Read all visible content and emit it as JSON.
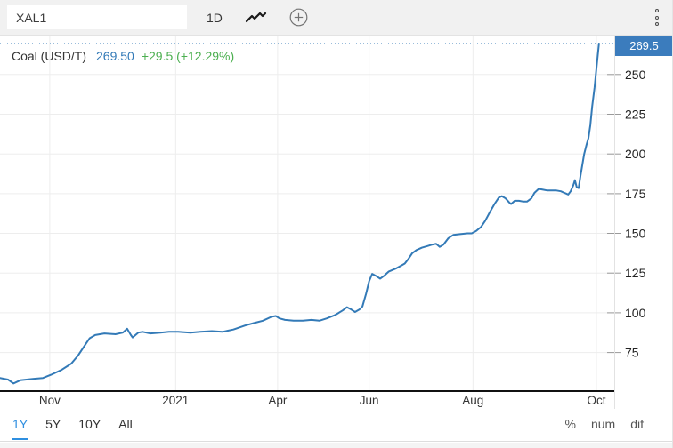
{
  "toolbar": {
    "symbol": "XAL1",
    "interval_label": "1D",
    "icons": [
      "line-style-icon",
      "add-circle-icon",
      "kebab-menu-icon"
    ]
  },
  "legend": {
    "title": "Coal (USD/T)",
    "price": "269.50",
    "change": "+29.5 (+12.29%)"
  },
  "price_axis": {
    "last_price_badge": "269.5"
  },
  "range_tabs": [
    {
      "label": "1Y",
      "active": true
    },
    {
      "label": "5Y",
      "active": false
    },
    {
      "label": "10Y",
      "active": false
    },
    {
      "label": "All",
      "active": false
    }
  ],
  "display_modes": [
    {
      "label": "%"
    },
    {
      "label": "num"
    },
    {
      "label": "dif"
    }
  ],
  "colors": {
    "accent_blue": "#337ab7",
    "badge_blue": "#3b7cbd",
    "active_tab_blue": "#2f8fe0",
    "positive_green": "#4caf50",
    "grid": "#ededed",
    "baseline_black": "#111111"
  },
  "chart_data": {
    "type": "line",
    "title": "Coal (USD/T)",
    "xlabel": "",
    "ylabel": "USD/T",
    "grid": true,
    "line_color": "#337ab7",
    "last_price": 269.5,
    "ylim": [
      50.7,
      269.5
    ],
    "y_ticks": [
      75,
      100,
      125,
      150,
      175,
      200,
      225,
      250
    ],
    "x_ticks": [
      {
        "pos": 0.081,
        "label": "Nov"
      },
      {
        "pos": 0.286,
        "label": "2021"
      },
      {
        "pos": 0.452,
        "label": "Apr"
      },
      {
        "pos": 0.601,
        "label": "Jun"
      },
      {
        "pos": 0.77,
        "label": "Aug"
      },
      {
        "pos": 0.971,
        "label": "Oct"
      }
    ],
    "series": [
      {
        "name": "Coal (USD/T)",
        "points": [
          [
            0.0,
            59
          ],
          [
            0.013,
            58
          ],
          [
            0.022,
            55.5
          ],
          [
            0.033,
            57.5
          ],
          [
            0.055,
            58.5
          ],
          [
            0.07,
            59
          ],
          [
            0.083,
            61
          ],
          [
            0.1,
            64
          ],
          [
            0.116,
            68
          ],
          [
            0.127,
            73
          ],
          [
            0.139,
            80
          ],
          [
            0.146,
            84
          ],
          [
            0.155,
            86
          ],
          [
            0.17,
            87
          ],
          [
            0.188,
            86.5
          ],
          [
            0.2,
            87.5
          ],
          [
            0.207,
            90
          ],
          [
            0.213,
            86
          ],
          [
            0.216,
            84.5
          ],
          [
            0.225,
            87.5
          ],
          [
            0.232,
            88
          ],
          [
            0.245,
            87
          ],
          [
            0.261,
            87.5
          ],
          [
            0.275,
            88
          ],
          [
            0.29,
            88
          ],
          [
            0.31,
            87.5
          ],
          [
            0.326,
            88
          ],
          [
            0.345,
            88.5
          ],
          [
            0.362,
            88
          ],
          [
            0.38,
            89.5
          ],
          [
            0.399,
            92
          ],
          [
            0.413,
            93.5
          ],
          [
            0.428,
            95
          ],
          [
            0.442,
            97.5
          ],
          [
            0.449,
            98
          ],
          [
            0.455,
            96.5
          ],
          [
            0.464,
            95.5
          ],
          [
            0.478,
            95
          ],
          [
            0.493,
            95
          ],
          [
            0.507,
            95.5
          ],
          [
            0.52,
            95
          ],
          [
            0.532,
            96.5
          ],
          [
            0.545,
            98.5
          ],
          [
            0.558,
            101.5
          ],
          [
            0.565,
            103.5
          ],
          [
            0.572,
            102
          ],
          [
            0.578,
            100.5
          ],
          [
            0.585,
            102
          ],
          [
            0.59,
            104
          ],
          [
            0.596,
            112
          ],
          [
            0.601,
            120
          ],
          [
            0.606,
            124.5
          ],
          [
            0.613,
            123
          ],
          [
            0.619,
            121.5
          ],
          [
            0.626,
            123.5
          ],
          [
            0.633,
            126
          ],
          [
            0.645,
            128
          ],
          [
            0.652,
            129.5
          ],
          [
            0.659,
            131
          ],
          [
            0.665,
            134
          ],
          [
            0.671,
            137.5
          ],
          [
            0.678,
            139.5
          ],
          [
            0.687,
            141
          ],
          [
            0.696,
            142
          ],
          [
            0.704,
            143
          ],
          [
            0.71,
            143.5
          ],
          [
            0.716,
            141.5
          ],
          [
            0.722,
            143
          ],
          [
            0.73,
            147
          ],
          [
            0.738,
            149
          ],
          [
            0.749,
            149.5
          ],
          [
            0.761,
            150
          ],
          [
            0.768,
            150
          ],
          [
            0.775,
            151.5
          ],
          [
            0.783,
            154
          ],
          [
            0.79,
            158
          ],
          [
            0.797,
            163
          ],
          [
            0.805,
            168.5
          ],
          [
            0.812,
            172.5
          ],
          [
            0.817,
            173.5
          ],
          [
            0.823,
            172
          ],
          [
            0.829,
            169.5
          ],
          [
            0.832,
            168.5
          ],
          [
            0.838,
            170.5
          ],
          [
            0.845,
            170.5
          ],
          [
            0.852,
            170
          ],
          [
            0.858,
            170
          ],
          [
            0.865,
            172
          ],
          [
            0.87,
            175.5
          ],
          [
            0.877,
            178
          ],
          [
            0.884,
            177.5
          ],
          [
            0.891,
            177
          ],
          [
            0.899,
            177
          ],
          [
            0.906,
            177
          ],
          [
            0.913,
            176.5
          ],
          [
            0.919,
            175.5
          ],
          [
            0.925,
            174.5
          ],
          [
            0.929,
            176.5
          ],
          [
            0.933,
            180
          ],
          [
            0.936,
            183.5
          ],
          [
            0.939,
            179
          ],
          [
            0.942,
            178.5
          ],
          [
            0.945,
            186
          ],
          [
            0.948,
            193
          ],
          [
            0.951,
            200
          ],
          [
            0.955,
            206
          ],
          [
            0.958,
            210
          ],
          [
            0.961,
            218
          ],
          [
            0.964,
            230
          ],
          [
            0.968,
            242
          ],
          [
            0.971,
            254
          ],
          [
            0.975,
            269.5
          ]
        ]
      }
    ]
  }
}
